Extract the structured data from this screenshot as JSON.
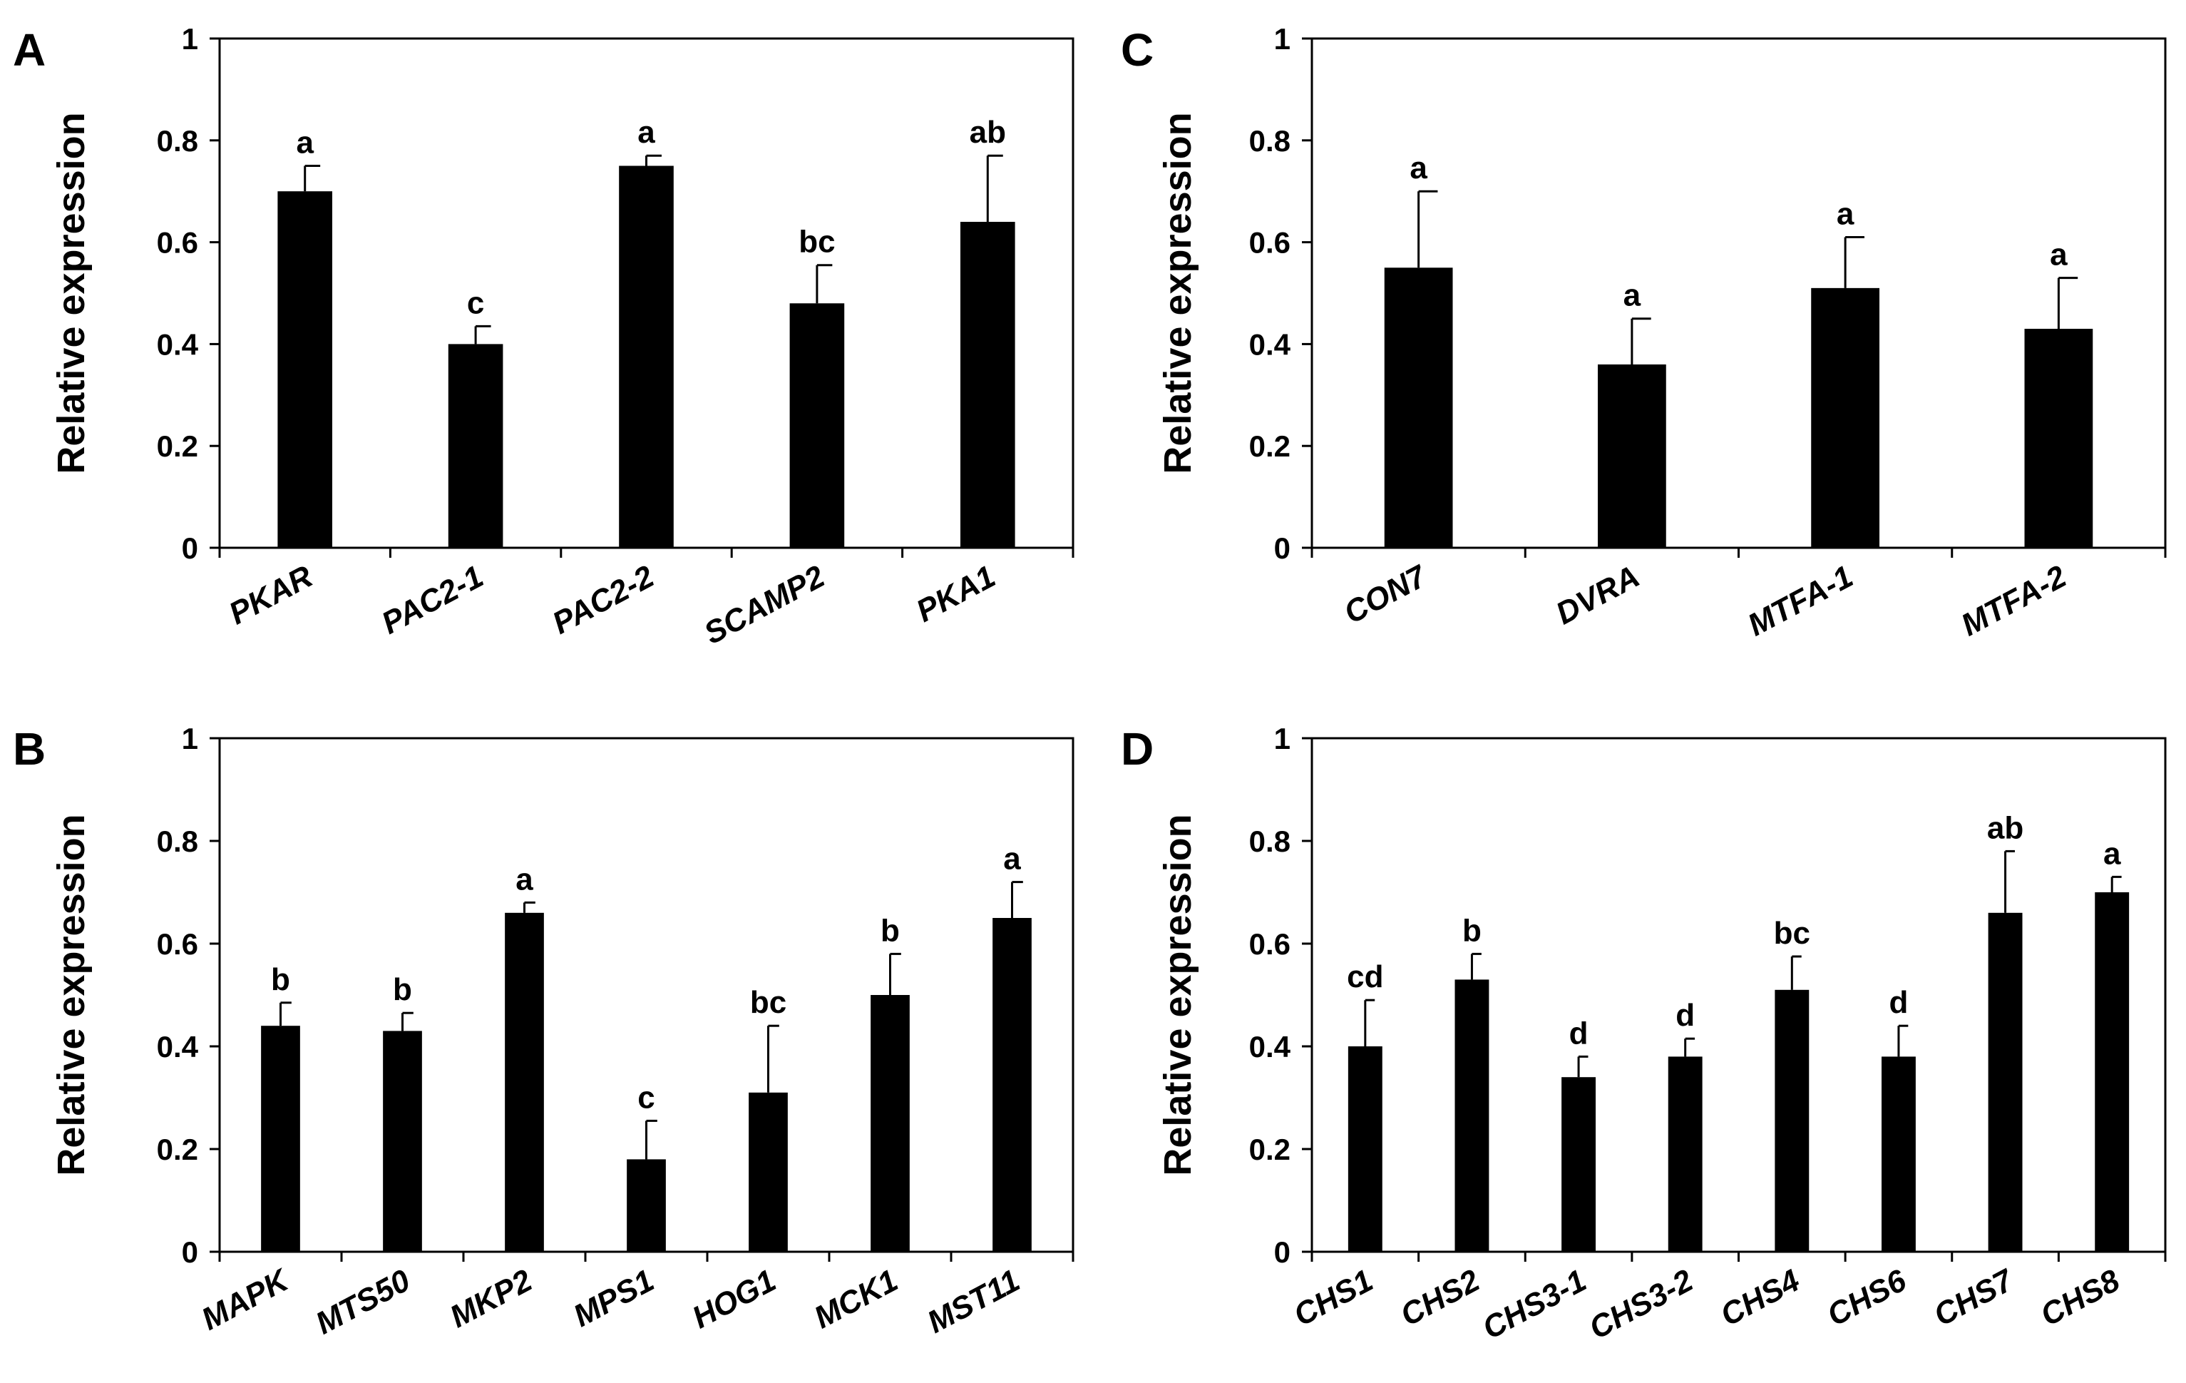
{
  "chart_data": [
    {
      "panel": "A",
      "type": "bar",
      "ylabel": "Relative expression",
      "ylim": [
        0,
        1
      ],
      "yticks": [
        "0",
        "0.2",
        "0.4",
        "0.6",
        "0.8",
        "1"
      ],
      "categories": [
        "PKAR",
        "PAC2-1",
        "PAC2-2",
        "SCAMP2",
        "PKA1"
      ],
      "values": [
        0.7,
        0.4,
        0.75,
        0.48,
        0.64
      ],
      "errors": [
        0.05,
        0.035,
        0.02,
        0.075,
        0.13
      ],
      "letters": [
        "a",
        "c",
        "a",
        "bc",
        "ab"
      ]
    },
    {
      "panel": "B",
      "type": "bar",
      "ylabel": "Relative expression",
      "ylim": [
        0,
        1
      ],
      "yticks": [
        "0",
        "0.2",
        "0.4",
        "0.6",
        "0.8",
        "1"
      ],
      "categories": [
        "MAPK",
        "MTS50",
        "MKP2",
        "MPS1",
        "HOG1",
        "MCK1",
        "MST11"
      ],
      "values": [
        0.44,
        0.43,
        0.66,
        0.18,
        0.31,
        0.5,
        0.65
      ],
      "errors": [
        0.045,
        0.035,
        0.02,
        0.075,
        0.13,
        0.08,
        0.07
      ],
      "letters": [
        "b",
        "b",
        "a",
        "c",
        "bc",
        "b",
        "a"
      ]
    },
    {
      "panel": "C",
      "type": "bar",
      "ylabel": "Relative expression",
      "ylim": [
        0,
        1
      ],
      "yticks": [
        "0",
        "0.2",
        "0.4",
        "0.6",
        "0.8",
        "1"
      ],
      "categories": [
        "CON7",
        "DVRA",
        "MTFA-1",
        "MTFA-2"
      ],
      "values": [
        0.55,
        0.36,
        0.51,
        0.43
      ],
      "errors": [
        0.15,
        0.09,
        0.1,
        0.1
      ],
      "letters": [
        "a",
        "a",
        "a",
        "a"
      ]
    },
    {
      "panel": "D",
      "type": "bar",
      "ylabel": "Relative expression",
      "ylim": [
        0,
        1
      ],
      "yticks": [
        "0",
        "0.2",
        "0.4",
        "0.6",
        "0.8",
        "1"
      ],
      "categories": [
        "CHS1",
        "CHS2",
        "CHS3-1",
        "CHS3-2",
        "CHS4",
        "CHS6",
        "CHS7",
        "CHS8"
      ],
      "values": [
        0.4,
        0.53,
        0.34,
        0.38,
        0.51,
        0.38,
        0.66,
        0.7
      ],
      "errors": [
        0.09,
        0.05,
        0.04,
        0.035,
        0.065,
        0.06,
        0.12,
        0.03
      ],
      "letters": [
        "cd",
        "b",
        "d",
        "d",
        "bc",
        "d",
        "ab",
        "a"
      ]
    }
  ]
}
